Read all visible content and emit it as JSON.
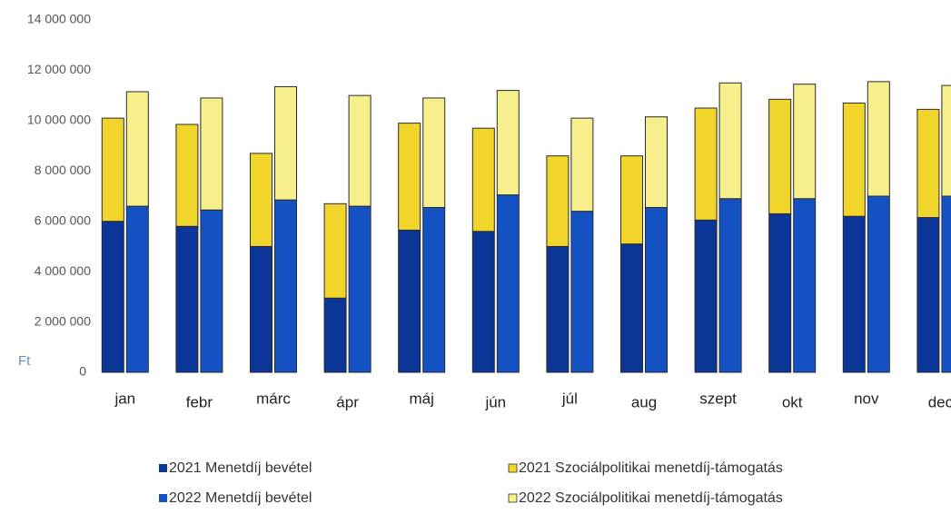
{
  "chart_data": {
    "type": "stacked_bar",
    "y_unit": "Ft",
    "categories": [
      "jan",
      "febr",
      "márc",
      "ápr",
      "máj",
      "jún",
      "júl",
      "aug",
      "szept",
      "okt",
      "nov",
      "dec"
    ],
    "series": [
      {
        "name": "2021 Menetdíj bevétel",
        "color": "#0b3596",
        "stack": "2021",
        "values": [
          6000000,
          5800000,
          5000000,
          2950000,
          5650000,
          5600000,
          5000000,
          5100000,
          6050000,
          6300000,
          6200000,
          6150000
        ]
      },
      {
        "name": "2022 Menetdíj bevétel",
        "color": "#1451c2",
        "stack": "2022",
        "values": [
          6600000,
          6450000,
          6850000,
          6600000,
          6550000,
          7050000,
          6400000,
          6550000,
          6900000,
          6900000,
          7000000,
          7000000
        ]
      },
      {
        "name": "2021 Szociálpolitikai menetdíj-támogatás",
        "color": "#f1d52a",
        "stack": "2021",
        "values": [
          4100000,
          4050000,
          3700000,
          3750000,
          4250000,
          4100000,
          3600000,
          3500000,
          4450000,
          4550000,
          4500000,
          4300000
        ]
      },
      {
        "name": "2022 Szociálpolitikai menetdíj-támogatás",
        "color": "#f7ef8c",
        "stack": "2022",
        "values": [
          4550000,
          4450000,
          4500000,
          4400000,
          4350000,
          4150000,
          3700000,
          3600000,
          4600000,
          4550000,
          4550000,
          4400000
        ]
      }
    ],
    "ylim": [
      0,
      14000000
    ],
    "yticks": [
      0,
      {
        "value": 2000000,
        "label": "2 000 000"
      },
      {
        "value": 4000000,
        "label": "4 000 000"
      },
      {
        "value": 6000000,
        "label": "6 000 000"
      },
      {
        "value": 8000000,
        "label": "8 000 000"
      },
      {
        "value": 10000000,
        "label": "10 000 000"
      },
      {
        "value": 12000000,
        "label": "12 000 000"
      },
      {
        "value": 14000000,
        "label": "14 000 000"
      }
    ],
    "grid": false
  }
}
